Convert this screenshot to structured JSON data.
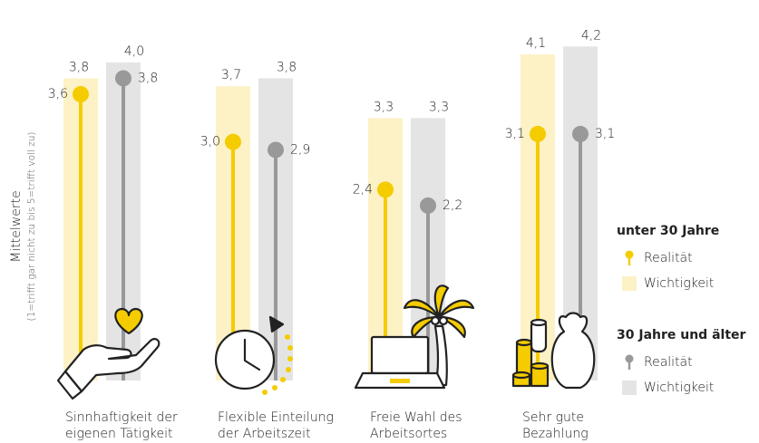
{
  "chart_data": {
    "type": "lollipop-bar",
    "y_label": [
      "Mittelwerte",
      "(1=trifft gar nicht zu bis 5=trifft voll zu)"
    ],
    "categories": [
      [
        "Sinnhaftigkeit der",
        "eigenen Tätigkeit"
      ],
      [
        "Flexible Einteilung",
        "der Arbeitszeit"
      ],
      [
        "Freie Wahl des",
        "Arbeitsortes"
      ],
      [
        "Sehr gute",
        "Bezahlung"
      ]
    ],
    "ylim": [
      0,
      4.5
    ],
    "series": [
      {
        "name": "Realität",
        "group": "unter 30 Jahre",
        "kind": "dot",
        "color": "#f5cc00",
        "values": [
          3.6,
          3.0,
          2.4,
          3.1
        ],
        "value_labels": [
          "3,6",
          "3,0",
          "2,4",
          "3,1"
        ]
      },
      {
        "name": "Wichtigkeit",
        "group": "unter 30 Jahre",
        "kind": "bar",
        "color": "#fdf1c6",
        "values": [
          3.8,
          3.7,
          3.3,
          4.1
        ],
        "value_labels": [
          "3,8",
          "3,7",
          "3,3",
          "4,1"
        ]
      },
      {
        "name": "Realität",
        "group": "30 Jahre und älter",
        "kind": "dot",
        "color": "#999999",
        "values": [
          3.8,
          2.9,
          2.2,
          3.1
        ],
        "value_labels": [
          "3,8",
          "2,9",
          "2,2",
          "3,1"
        ]
      },
      {
        "name": "Wichtigkeit",
        "group": "30 Jahre und älter",
        "kind": "bar",
        "color": "#e4e4e4",
        "values": [
          4.0,
          3.8,
          3.3,
          4.2
        ],
        "value_labels": [
          "4,0",
          "3,8",
          "3,3",
          "4,2"
        ]
      }
    ]
  }
}
